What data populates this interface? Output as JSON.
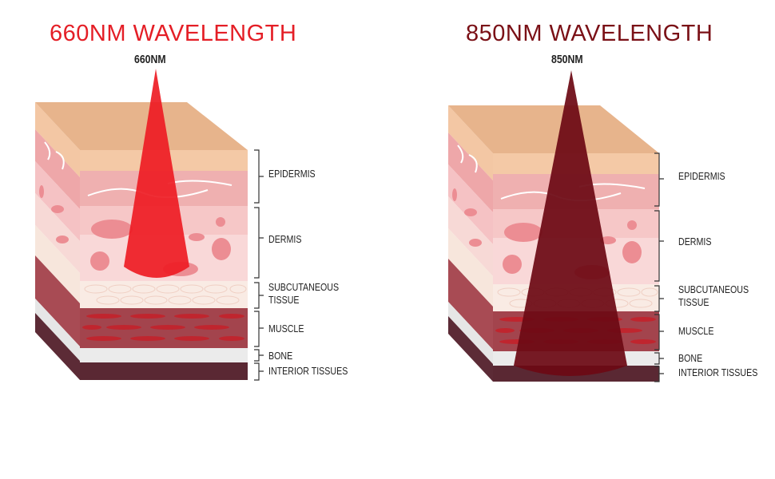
{
  "colors": {
    "title_660": "#e41e26",
    "title_850": "#7a1016",
    "beam_660": "#ee1c24",
    "beam_850": "#6d0a14"
  },
  "panels": [
    {
      "title": "660NM WAVELENGTH",
      "beam_label": "660NM",
      "labels": {
        "epidermis": "EPIDERMIS",
        "dermis": "DERMIS",
        "subcutaneous_1": "SUBCUTANEOUS",
        "subcutaneous_2": "TISSUE",
        "muscle": "MUSCLE",
        "bone": "BONE",
        "interior": "INTERIOR TISSUES"
      }
    },
    {
      "title": "850NM WAVELENGTH",
      "beam_label": "850NM",
      "labels": {
        "epidermis": "EPIDERMIS",
        "dermis": "DERMIS",
        "subcutaneous_1": "SUBCUTANEOUS",
        "subcutaneous_2": "TISSUE",
        "muscle": "MUSCLE",
        "bone": "BONE",
        "interior": "INTERIOR TISSUES"
      }
    }
  ]
}
